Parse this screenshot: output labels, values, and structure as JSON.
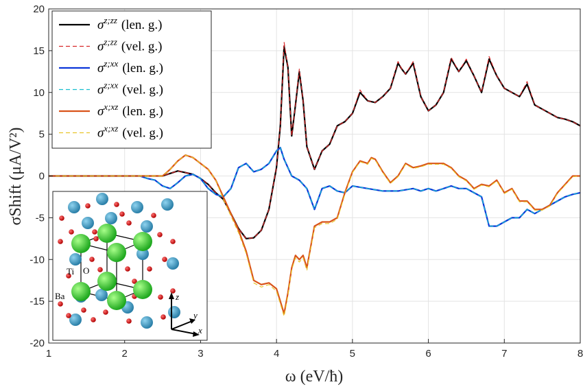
{
  "chart_data": {
    "type": "line",
    "title": "",
    "xlabel": "ω (eV/ħ)",
    "ylabel": "σShift (μA/V²)",
    "xlim": [
      1,
      8
    ],
    "ylim": [
      -20,
      20
    ],
    "xticks": [
      1,
      2,
      3,
      4,
      5,
      6,
      7,
      8
    ],
    "yticks": [
      -20,
      -15,
      -10,
      -5,
      0,
      5,
      10,
      15,
      20
    ],
    "xtick_labels": [
      "1",
      "2",
      "3",
      "4",
      "5",
      "6",
      "7",
      "8"
    ],
    "ytick_labels": [
      "-20",
      "-15",
      "-10",
      "-5",
      "0",
      "5",
      "10",
      "15",
      "20"
    ],
    "grid": true,
    "legend_position": "top-left",
    "series": [
      {
        "name": "σ^{z;zz} (len. g.)",
        "sup": "z;zz",
        "gauge": "(len. g.)",
        "color": "#000000",
        "dash": "solid",
        "width": 2.2,
        "x": [
          1.0,
          2.0,
          2.5,
          2.6,
          2.7,
          2.8,
          2.9,
          3.0,
          3.1,
          3.2,
          3.3,
          3.4,
          3.5,
          3.6,
          3.7,
          3.8,
          3.9,
          4.0,
          4.05,
          4.1,
          4.15,
          4.2,
          4.25,
          4.3,
          4.35,
          4.4,
          4.5,
          4.6,
          4.7,
          4.8,
          4.9,
          5.0,
          5.1,
          5.2,
          5.3,
          5.4,
          5.5,
          5.6,
          5.65,
          5.7,
          5.8,
          5.9,
          6.0,
          6.1,
          6.2,
          6.3,
          6.4,
          6.5,
          6.6,
          6.7,
          6.8,
          6.9,
          7.0,
          7.1,
          7.2,
          7.3,
          7.4,
          7.5,
          7.6,
          7.7,
          7.8,
          7.9,
          8.0
        ],
        "y": [
          0,
          0,
          0,
          0.3,
          0.6,
          0.4,
          0.2,
          -0.3,
          -1.0,
          -2.0,
          -2.8,
          -4.5,
          -6.3,
          -7.5,
          -7.4,
          -6.5,
          -4.0,
          1.0,
          6.0,
          15.5,
          13.0,
          4.8,
          8.5,
          12.5,
          9.0,
          3.5,
          0.8,
          3.0,
          3.8,
          6.0,
          6.5,
          7.5,
          10.0,
          9.0,
          8.8,
          9.5,
          10.5,
          13.5,
          12.8,
          12.2,
          13.5,
          9.5,
          7.8,
          8.5,
          10.0,
          14.0,
          12.5,
          13.8,
          12.0,
          10.0,
          14.0,
          12.0,
          10.5,
          10.0,
          9.5,
          11.0,
          8.5,
          8.0,
          7.5,
          7.0,
          6.8,
          6.5,
          6.0
        ]
      },
      {
        "name": "σ^{z;zz} (vel. g.)",
        "sup": "z;zz",
        "gauge": "(vel. g.)",
        "color": "#d62728",
        "dash": "6 4",
        "width": 1.2,
        "x": [
          1.0,
          2.0,
          2.5,
          2.6,
          2.7,
          2.8,
          2.9,
          3.0,
          3.1,
          3.2,
          3.3,
          3.4,
          3.5,
          3.6,
          3.7,
          3.8,
          3.9,
          4.0,
          4.05,
          4.1,
          4.15,
          4.2,
          4.25,
          4.3,
          4.35,
          4.4,
          4.5,
          4.6,
          4.7,
          4.8,
          4.9,
          5.0,
          5.1,
          5.2,
          5.3,
          5.4,
          5.5,
          5.6,
          5.65,
          5.7,
          5.8,
          5.9,
          6.0,
          6.1,
          6.2,
          6.3,
          6.4,
          6.5,
          6.6,
          6.7,
          6.8,
          6.9,
          7.0,
          7.1,
          7.2,
          7.3,
          7.4,
          7.5,
          7.6,
          7.7,
          7.8,
          7.9,
          8.0
        ],
        "y": [
          0,
          0,
          0,
          0.3,
          0.6,
          0.4,
          0.2,
          -0.3,
          -1.0,
          -2.0,
          -2.8,
          -4.5,
          -6.3,
          -7.5,
          -7.4,
          -6.5,
          -4.0,
          1.0,
          6.0,
          16.0,
          13.0,
          4.8,
          8.5,
          12.8,
          9.0,
          3.5,
          0.8,
          3.0,
          3.8,
          6.0,
          6.5,
          7.5,
          10.3,
          9.0,
          8.8,
          9.5,
          10.5,
          13.7,
          12.8,
          12.2,
          13.7,
          9.5,
          7.8,
          8.5,
          10.0,
          14.2,
          12.5,
          14.0,
          12.0,
          10.0,
          14.3,
          12.0,
          10.5,
          10.0,
          9.5,
          11.3,
          8.5,
          8.0,
          7.5,
          7.0,
          6.8,
          6.5,
          6.0
        ]
      },
      {
        "name": "σ^{z;xx} (len. g.)",
        "sup": "z;xx",
        "gauge": "(len. g.)",
        "color": "#0b36d9",
        "dash": "solid",
        "width": 2.2,
        "x": [
          1.0,
          2.0,
          2.1,
          2.2,
          2.3,
          2.4,
          2.5,
          2.6,
          2.7,
          2.8,
          2.9,
          3.0,
          3.1,
          3.2,
          3.3,
          3.4,
          3.5,
          3.6,
          3.7,
          3.8,
          3.9,
          4.0,
          4.05,
          4.1,
          4.2,
          4.3,
          4.4,
          4.5,
          4.6,
          4.7,
          4.8,
          4.9,
          5.0,
          5.2,
          5.4,
          5.6,
          5.8,
          5.9,
          6.0,
          6.1,
          6.2,
          6.3,
          6.4,
          6.5,
          6.6,
          6.7,
          6.8,
          6.9,
          7.0,
          7.1,
          7.2,
          7.3,
          7.4,
          7.5,
          7.6,
          7.7,
          7.8,
          7.9,
          8.0
        ],
        "y": [
          0,
          0,
          0,
          0,
          -0.3,
          -0.5,
          -1.2,
          -1.5,
          -0.8,
          0.0,
          0.2,
          -0.3,
          -1.5,
          -2.2,
          -2.5,
          -1.5,
          1.0,
          1.5,
          0.5,
          0.8,
          1.5,
          3.0,
          3.4,
          2.0,
          0.0,
          -0.5,
          -1.5,
          -4.0,
          -1.5,
          -1.2,
          -1.8,
          -2.0,
          -1.2,
          -1.5,
          -1.8,
          -1.8,
          -1.5,
          -1.8,
          -1.5,
          -1.8,
          -1.5,
          -1.2,
          -1.5,
          -1.5,
          -2.0,
          -2.5,
          -6.0,
          -6.0,
          -5.5,
          -5.0,
          -5.0,
          -4.0,
          -4.5,
          -4.0,
          -3.5,
          -3.0,
          -2.5,
          -2.2,
          -2.0
        ]
      },
      {
        "name": "σ^{z;xx} (vel. g.)",
        "sup": "z;xx",
        "gauge": "(vel. g.)",
        "color": "#17becf",
        "dash": "6 4",
        "width": 1.2,
        "x": [
          1.0,
          2.0,
          2.1,
          2.2,
          2.3,
          2.4,
          2.5,
          2.6,
          2.7,
          2.8,
          2.9,
          3.0,
          3.1,
          3.2,
          3.3,
          3.4,
          3.5,
          3.6,
          3.7,
          3.8,
          3.9,
          4.0,
          4.05,
          4.1,
          4.2,
          4.3,
          4.4,
          4.5,
          4.6,
          4.7,
          4.8,
          4.9,
          5.0,
          5.2,
          5.4,
          5.6,
          5.8,
          5.9,
          6.0,
          6.1,
          6.2,
          6.3,
          6.4,
          6.5,
          6.6,
          6.7,
          6.8,
          6.9,
          7.0,
          7.1,
          7.2,
          7.3,
          7.4,
          7.5,
          7.6,
          7.7,
          7.8,
          7.9,
          8.0
        ],
        "y": [
          0,
          0,
          0,
          0,
          -0.3,
          -0.5,
          -1.2,
          -1.5,
          -0.8,
          0.0,
          0.2,
          -0.3,
          -1.5,
          -2.2,
          -2.5,
          -1.5,
          1.0,
          1.5,
          0.5,
          0.8,
          1.5,
          3.0,
          3.4,
          2.0,
          0.0,
          -0.5,
          -1.5,
          -4.0,
          -1.5,
          -1.2,
          -1.8,
          -2.0,
          -1.2,
          -1.5,
          -1.8,
          -1.8,
          -1.5,
          -1.8,
          -1.5,
          -1.8,
          -1.5,
          -1.2,
          -1.5,
          -1.5,
          -2.0,
          -2.5,
          -6.0,
          -6.0,
          -5.5,
          -5.0,
          -5.0,
          -4.0,
          -4.5,
          -4.0,
          -3.5,
          -3.0,
          -2.5,
          -2.2,
          -2.0
        ]
      },
      {
        "name": "σ^{x;xz} (len. g.)",
        "sup": "x;xz",
        "gauge": "(len. g.)",
        "color": "#d95319",
        "dash": "solid",
        "width": 2.2,
        "x": [
          1.0,
          2.0,
          2.5,
          2.6,
          2.7,
          2.8,
          2.9,
          3.0,
          3.1,
          3.2,
          3.3,
          3.4,
          3.5,
          3.6,
          3.7,
          3.8,
          3.9,
          4.0,
          4.05,
          4.1,
          4.15,
          4.2,
          4.25,
          4.3,
          4.35,
          4.4,
          4.5,
          4.6,
          4.7,
          4.8,
          4.9,
          5.0,
          5.1,
          5.2,
          5.25,
          5.3,
          5.4,
          5.5,
          5.6,
          5.7,
          5.8,
          5.9,
          6.0,
          6.1,
          6.2,
          6.3,
          6.4,
          6.5,
          6.6,
          6.7,
          6.8,
          6.9,
          7.0,
          7.1,
          7.2,
          7.3,
          7.4,
          7.5,
          7.6,
          7.7,
          7.8,
          7.9,
          8.0
        ],
        "y": [
          0,
          0,
          0,
          0.8,
          1.8,
          2.5,
          2.2,
          1.5,
          0.8,
          -0.5,
          -2.5,
          -4.5,
          -6.5,
          -9.0,
          -12.5,
          -13.0,
          -12.8,
          -13.5,
          -15.0,
          -16.5,
          -14.0,
          -11.0,
          -9.5,
          -10.0,
          -9.5,
          -11.0,
          -6.0,
          -5.5,
          -5.5,
          -5.0,
          -2.0,
          0.5,
          1.8,
          1.5,
          2.2,
          2.0,
          0.5,
          -0.8,
          0.0,
          1.5,
          1.0,
          1.2,
          1.5,
          1.5,
          1.5,
          1.0,
          0.0,
          -0.5,
          -1.5,
          -1.0,
          -1.2,
          -0.5,
          -2.0,
          -1.5,
          -3.0,
          -3.0,
          -4.0,
          -4.0,
          -3.5,
          -2.0,
          -1.0,
          0.0,
          0.0
        ]
      },
      {
        "name": "σ^{x;xz} (vel. g.)",
        "sup": "x;xz",
        "gauge": "(vel. g.)",
        "color": "#e8c42a",
        "dash": "6 4",
        "width": 1.2,
        "x": [
          1.0,
          2.0,
          2.5,
          2.6,
          2.7,
          2.8,
          2.9,
          3.0,
          3.1,
          3.2,
          3.3,
          3.4,
          3.5,
          3.6,
          3.7,
          3.8,
          3.9,
          4.0,
          4.05,
          4.1,
          4.15,
          4.2,
          4.25,
          4.3,
          4.35,
          4.4,
          4.5,
          4.6,
          4.7,
          4.8,
          4.9,
          5.0,
          5.1,
          5.2,
          5.25,
          5.3,
          5.4,
          5.5,
          5.6,
          5.7,
          5.8,
          5.9,
          6.0,
          6.1,
          6.2,
          6.3,
          6.4,
          6.5,
          6.6,
          6.7,
          6.8,
          6.9,
          7.0,
          7.1,
          7.2,
          7.3,
          7.4,
          7.5,
          7.6,
          7.7,
          7.8,
          7.9,
          8.0
        ],
        "y": [
          0,
          0,
          0,
          0.8,
          1.8,
          2.5,
          2.2,
          1.5,
          0.8,
          -0.5,
          -2.8,
          -4.8,
          -6.8,
          -9.3,
          -12.8,
          -13.3,
          -13.0,
          -13.8,
          -15.3,
          -16.8,
          -14.3,
          -11.2,
          -9.8,
          -10.3,
          -9.8,
          -11.3,
          -6.2,
          -5.7,
          -5.7,
          -5.2,
          -2.2,
          0.4,
          1.7,
          1.4,
          2.1,
          1.9,
          0.4,
          -0.9,
          -0.1,
          1.4,
          0.9,
          1.1,
          1.4,
          1.4,
          1.4,
          0.9,
          -0.1,
          -0.6,
          -1.6,
          -1.1,
          -1.3,
          -0.6,
          -2.1,
          -1.6,
          -3.1,
          -3.1,
          -4.1,
          -4.1,
          -3.6,
          -2.1,
          -1.1,
          -0.1,
          0.0
        ]
      }
    ],
    "inset": {
      "labels": [
        "Ti",
        "O",
        "Ba"
      ],
      "axes": [
        "z",
        "y",
        "x"
      ]
    }
  }
}
